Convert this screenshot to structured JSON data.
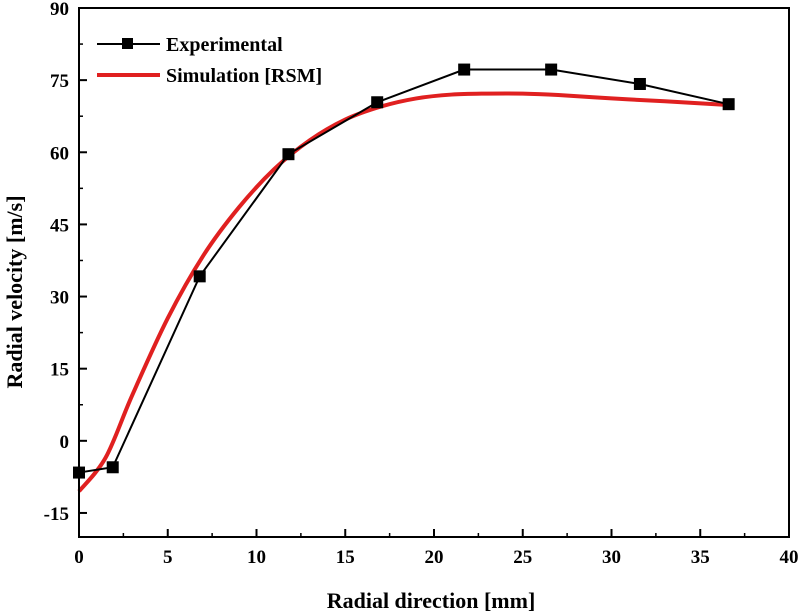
{
  "chart_data": {
    "type": "line",
    "title": "",
    "xlabel": "Radial direction [mm]",
    "ylabel": "Radial velocity [m/s]",
    "xlim": [
      0,
      40
    ],
    "ylim": [
      -20,
      90
    ],
    "xticks": [
      0,
      5,
      10,
      15,
      20,
      25,
      30,
      35,
      40
    ],
    "yticks": [
      -15,
      0,
      15,
      30,
      45,
      60,
      75,
      90
    ],
    "grid": false,
    "legend_position": "top-left",
    "series": [
      {
        "name": "Experimental",
        "color": "#000000",
        "marker": "square",
        "x": [
          0,
          1.9,
          6.8,
          11.8,
          16.8,
          21.7,
          26.6,
          31.6,
          36.6
        ],
        "y": [
          -6.6,
          -5.5,
          34.2,
          59.6,
          70.4,
          77.2,
          77.2,
          74.2,
          70.0
        ]
      },
      {
        "name": "Simulation [RSM]",
        "color": "#e02020",
        "marker": "none",
        "x": [
          0,
          1.5,
          3,
          5,
          7,
          9,
          11,
          13,
          15,
          17,
          19,
          21,
          23,
          25,
          27,
          30,
          33,
          36.7
        ],
        "y": [
          -10.5,
          -3.5,
          9.5,
          25.5,
          38.5,
          48.5,
          56.5,
          62.5,
          66.8,
          69.5,
          71.2,
          72.0,
          72.2,
          72.2,
          71.9,
          71.2,
          70.6,
          69.8
        ]
      }
    ]
  }
}
